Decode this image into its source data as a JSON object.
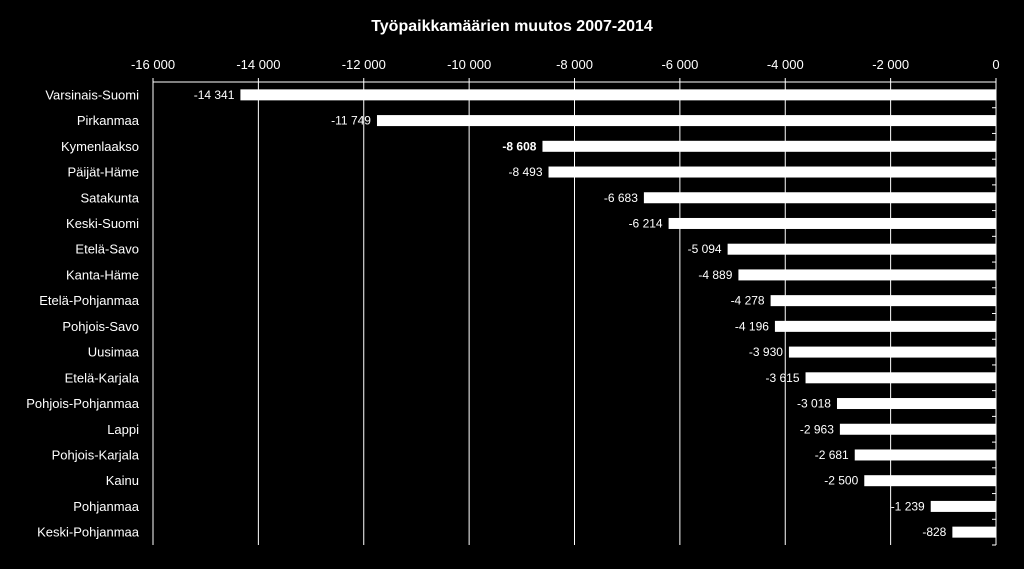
{
  "chart_data": {
    "type": "bar",
    "orientation": "horizontal",
    "title": "Työpaikkamäärien muutos 2007-2014",
    "xlabel": "",
    "ylabel": "",
    "xlim": [
      -16000,
      0
    ],
    "ticks": [
      -16000,
      -14000,
      -12000,
      -10000,
      -8000,
      -6000,
      -4000,
      -2000,
      0
    ],
    "tick_labels": [
      "-16 000",
      "-14 000",
      "-12 000",
      "-10 000",
      "-8 000",
      "-6 000",
      "-4 000",
      "-2 000",
      "0"
    ],
    "grid": "vertical",
    "axis_position": "top",
    "categories": [
      "Varsinais-Suomi",
      "Pirkanmaa",
      "Kymenlaakso",
      "Päijät-Häme",
      "Satakunta",
      "Keski-Suomi",
      "Etelä-Savo",
      "Kanta-Häme",
      "Etelä-Pohjanmaa",
      "Pohjois-Savo",
      "Uusimaa",
      "Etelä-Karjala",
      "Pohjois-Pohjanmaa",
      "Lappi",
      "Pohjois-Karjala",
      "Kainu",
      "Pohjanmaa",
      "Keski-Pohjanmaa"
    ],
    "values": [
      -14341,
      -11749,
      -8608,
      -8493,
      -6683,
      -6214,
      -5094,
      -4889,
      -4278,
      -4196,
      -3930,
      -3615,
      -3018,
      -2963,
      -2681,
      -2500,
      -1239,
      -828
    ],
    "value_labels": [
      "-14 341",
      "-11 749",
      "-8 608",
      "-8 493",
      "-6 683",
      "-6 214",
      "-5 094",
      "-4 889",
      "-4 278",
      "-4 196",
      "-3 930",
      "-3 615",
      "-3 018",
      "-2 963",
      "-2 681",
      "-2 500",
      "-1 239",
      "-828"
    ],
    "highlight_category": "Kymenlaakso",
    "colors": {
      "background": "#000000",
      "bar": "#ffffff",
      "text": "#ffffff",
      "grid": "#ffffff"
    }
  }
}
